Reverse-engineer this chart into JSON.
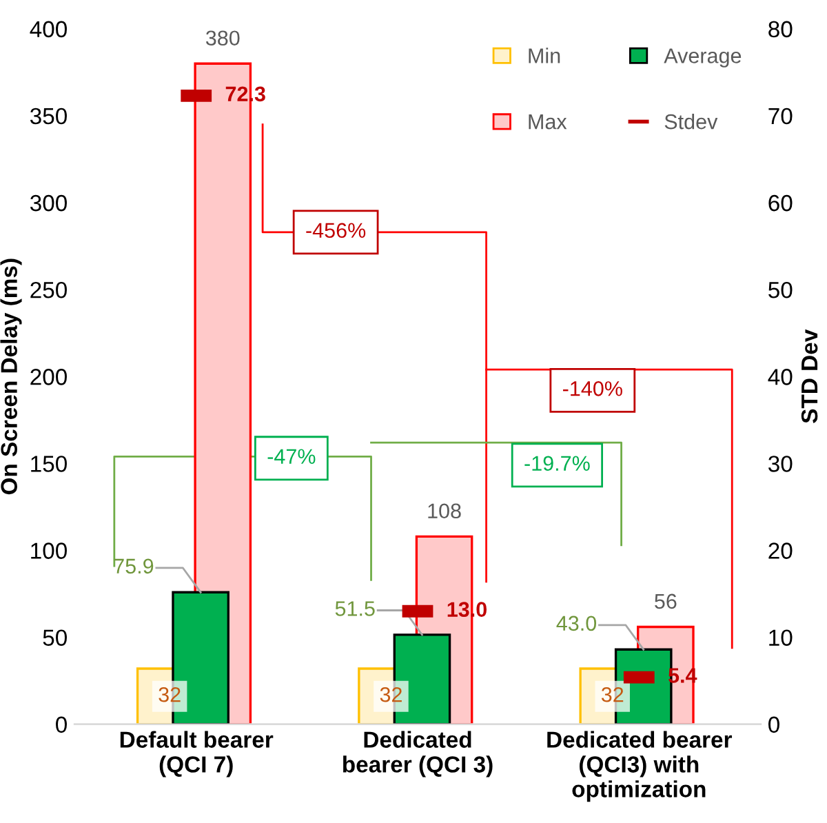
{
  "chart_data": {
    "type": "bar",
    "ylabel": "On Screen Delay (ms)",
    "y2label": "STD Dev",
    "categories": [
      "Default bearer\n(QCI 7)",
      "Dedicated\nbearer (QCI 3)",
      "Dedicated bearer\n(QCI3) with\noptimization"
    ],
    "series": [
      {
        "name": "Min",
        "color": "#fff2cc",
        "values": [
          32,
          32,
          32
        ],
        "value_labels": [
          "32",
          "32",
          "32"
        ]
      },
      {
        "name": "Average",
        "color": "#00b050",
        "values": [
          75.9,
          51.5,
          43.0
        ],
        "value_labels": [
          "75.9",
          "51.5",
          "43.0"
        ]
      },
      {
        "name": "Max",
        "color": "#ffc9c9",
        "values": [
          380,
          108,
          56
        ],
        "value_labels": [
          "380",
          "108",
          "56"
        ]
      },
      {
        "name": "Stdev",
        "type": "scatter",
        "axis": "y2",
        "color": "#c00000",
        "values": [
          72.3,
          13.0,
          5.4
        ],
        "value_labels": [
          "72.3",
          "13.0",
          "5.4"
        ]
      }
    ],
    "ylim": [
      0,
      400
    ],
    "yticks": [
      0,
      50,
      100,
      150,
      200,
      250,
      300,
      350,
      400
    ],
    "y2lim": [
      0,
      80
    ],
    "y2ticks": [
      0,
      10,
      20,
      30,
      40,
      50,
      60,
      70,
      80
    ],
    "annotations": [
      "-456%",
      "-140%",
      "-47%",
      "-19.7%"
    ],
    "legend": "top right",
    "grid": false
  }
}
